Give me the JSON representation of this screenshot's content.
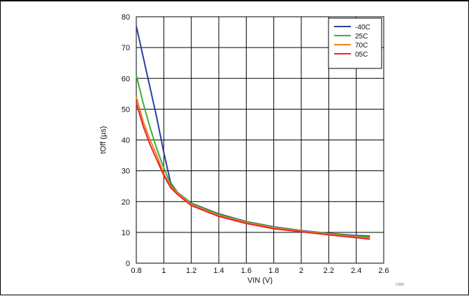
{
  "chart_data": {
    "type": "line",
    "xlabel": "VIN (V)",
    "ylabel": "tOff (µs)",
    "xlim": [
      0.8,
      2.6
    ],
    "ylim": [
      0,
      80
    ],
    "x_ticks": [
      0.8,
      1,
      1.2,
      1.4,
      1.6,
      1.8,
      2,
      2.2,
      2.4,
      2.6
    ],
    "x_tick_labels": [
      "0.8",
      "1",
      "1.2",
      "1.4",
      "1.6",
      "1.8",
      "2",
      "2.2",
      "2.4",
      "2.6"
    ],
    "y_ticks": [
      0,
      10,
      20,
      30,
      40,
      50,
      60,
      70,
      80
    ],
    "y_tick_labels": [
      "0",
      "10",
      "20",
      "30",
      "40",
      "50",
      "60",
      "70",
      "80"
    ],
    "grid": true,
    "legend_position": "top-right",
    "series": [
      {
        "name": "-40C",
        "color": "#2b3f9e",
        "x": [
          0.8,
          0.85,
          0.9,
          0.95,
          1.0,
          1.05,
          1.1,
          1.2,
          1.4,
          1.6,
          1.8,
          2.0,
          2.2,
          2.4,
          2.5
        ],
        "y": [
          77,
          67,
          57,
          47,
          36,
          26,
          23,
          19.5,
          16,
          13.5,
          11.8,
          10.6,
          9.7,
          9.0,
          8.8
        ]
      },
      {
        "name": "25C",
        "color": "#3fae3a",
        "x": [
          0.8,
          0.85,
          0.9,
          0.95,
          1.0,
          1.05,
          1.1,
          1.2,
          1.4,
          1.6,
          1.8,
          2.0,
          2.2,
          2.4,
          2.5
        ],
        "y": [
          61,
          52,
          44,
          37,
          31,
          25.5,
          23,
          19.3,
          15.8,
          13.4,
          11.7,
          10.5,
          9.6,
          8.8,
          8.5
        ]
      },
      {
        "name": "70C",
        "color": "#f07f1a",
        "x": [
          0.8,
          0.85,
          0.9,
          0.95,
          1.0,
          1.05,
          1.1,
          1.2,
          1.4,
          1.6,
          1.8,
          2.0,
          2.2,
          2.4,
          2.5
        ],
        "y": [
          54,
          46,
          40,
          35,
          29,
          25,
          22.8,
          19.0,
          15.5,
          13.2,
          11.5,
          10.4,
          9.4,
          8.5,
          8.1
        ]
      },
      {
        "name": "05C",
        "color": "#e8262a",
        "x": [
          0.8,
          0.85,
          0.9,
          0.95,
          1.0,
          1.05,
          1.1,
          1.2,
          1.4,
          1.6,
          1.8,
          2.0,
          2.2,
          2.4,
          2.5
        ],
        "y": [
          52,
          44.5,
          38.5,
          33.5,
          28.5,
          24.5,
          22.3,
          18.7,
          15.2,
          12.9,
          11.2,
          10.2,
          9.2,
          8.3,
          7.8
        ]
      }
    ]
  },
  "figure_code": "C062"
}
